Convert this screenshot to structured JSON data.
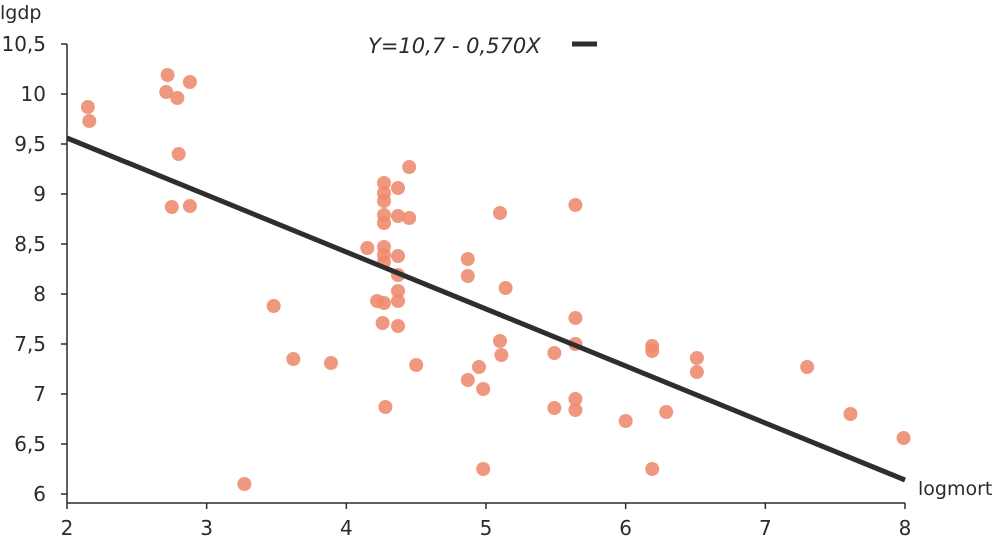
{
  "chart_data": {
    "type": "scatter",
    "title": "",
    "xlabel": "logmort",
    "ylabel": "lgdp",
    "xlim": [
      2,
      8
    ],
    "ylim": [
      6,
      10.5
    ],
    "x_ticks": [
      2,
      3,
      4,
      5,
      6,
      7,
      8
    ],
    "y_ticks": [
      6,
      6.5,
      7,
      7.5,
      8,
      8.5,
      9,
      9.5,
      10,
      10.5
    ],
    "x_tick_labels": [
      "2",
      "3",
      "4",
      "5",
      "6",
      "7",
      "8"
    ],
    "y_tick_labels": [
      "6",
      "6,5",
      "7",
      "7,5",
      "8",
      "8,5",
      "9",
      "9,5",
      "10",
      "10,5"
    ],
    "grid": false,
    "point_color": "#ee8a6d",
    "line_color": "#2e2e2e",
    "regression": {
      "label": "Y=10,7 - 0,570X",
      "intercept": 10.7,
      "slope": -0.57,
      "x_range": [
        2,
        8
      ]
    },
    "points": [
      [
        2.15,
        9.87
      ],
      [
        2.16,
        9.73
      ],
      [
        2.72,
        10.19
      ],
      [
        2.71,
        10.02
      ],
      [
        2.79,
        9.96
      ],
      [
        2.88,
        10.12
      ],
      [
        2.8,
        9.4
      ],
      [
        2.75,
        8.87
      ],
      [
        2.88,
        8.88
      ],
      [
        3.27,
        6.1
      ],
      [
        3.48,
        7.88
      ],
      [
        3.62,
        7.35
      ],
      [
        3.89,
        7.31
      ],
      [
        4.15,
        8.46
      ],
      [
        4.22,
        7.93
      ],
      [
        4.26,
        7.71
      ],
      [
        4.28,
        6.87
      ],
      [
        4.27,
        9.11
      ],
      [
        4.27,
        9.01
      ],
      [
        4.27,
        8.93
      ],
      [
        4.27,
        8.79
      ],
      [
        4.27,
        8.71
      ],
      [
        4.27,
        8.47
      ],
      [
        4.27,
        8.39
      ],
      [
        4.27,
        8.32
      ],
      [
        4.27,
        7.91
      ],
      [
        4.37,
        9.06
      ],
      [
        4.37,
        8.78
      ],
      [
        4.45,
        8.76
      ],
      [
        4.45,
        9.27
      ],
      [
        4.37,
        8.38
      ],
      [
        4.37,
        8.19
      ],
      [
        4.37,
        8.03
      ],
      [
        4.37,
        7.93
      ],
      [
        4.37,
        7.68
      ],
      [
        4.5,
        7.29
      ],
      [
        4.87,
        8.35
      ],
      [
        4.87,
        8.18
      ],
      [
        4.87,
        7.14
      ],
      [
        4.95,
        7.27
      ],
      [
        4.98,
        7.05
      ],
      [
        4.98,
        6.25
      ],
      [
        5.1,
        8.81
      ],
      [
        5.1,
        7.53
      ],
      [
        5.11,
        7.39
      ],
      [
        5.14,
        8.06
      ],
      [
        5.49,
        7.41
      ],
      [
        5.49,
        6.86
      ],
      [
        5.64,
        8.89
      ],
      [
        5.64,
        7.76
      ],
      [
        5.64,
        7.5
      ],
      [
        5.64,
        6.95
      ],
      [
        5.64,
        6.84
      ],
      [
        6.0,
        6.73
      ],
      [
        6.19,
        7.48
      ],
      [
        6.19,
        7.43
      ],
      [
        6.19,
        6.25
      ],
      [
        6.29,
        6.82
      ],
      [
        6.51,
        7.36
      ],
      [
        6.51,
        7.22
      ],
      [
        7.3,
        7.27
      ],
      [
        7.61,
        6.8
      ],
      [
        7.99,
        6.56
      ]
    ]
  }
}
